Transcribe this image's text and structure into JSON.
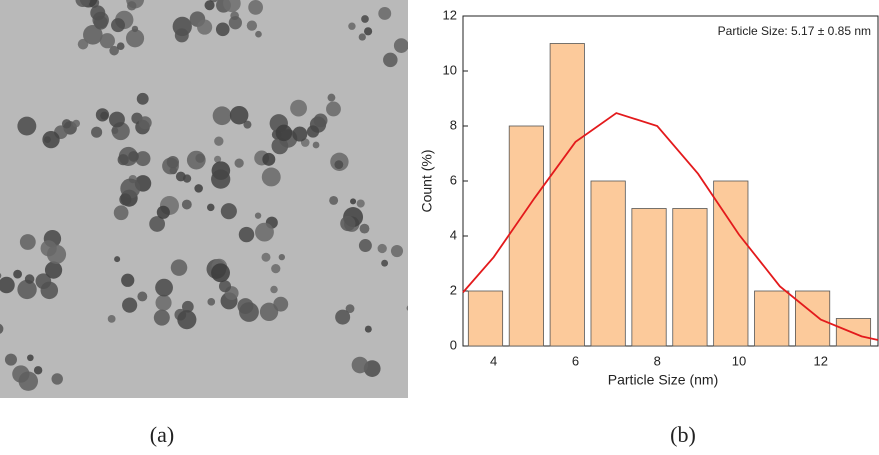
{
  "chart_data": [
    {
      "type": "image",
      "caption": "(a)"
    },
    {
      "type": "histogram",
      "caption": "(b)",
      "annotation": "Particle Size: 5.17 ± 0.85 nm",
      "x_label": "Particle Size (nm)",
      "y_label": "Count (%)",
      "bins": [
        3.3,
        4.3,
        5.3,
        6.3,
        7.3,
        8.3,
        9.3,
        10.3,
        11.3,
        12.3,
        13.3
      ],
      "values": [
        2,
        8,
        11,
        6,
        5,
        5,
        6,
        2,
        2,
        1
      ],
      "color": "#fcca9b",
      "fit": {
        "color": "#e31a1c",
        "x": [
          3.25,
          4,
          5,
          6,
          7,
          8,
          9,
          10,
          11,
          12,
          13,
          13.4
        ],
        "values": [
          1.95,
          3.23,
          5.38,
          7.42,
          8.47,
          8.0,
          6.26,
          4.05,
          2.17,
          0.96,
          0.35,
          0.22
        ]
      },
      "xlim": [
        3.25,
        13.4
      ],
      "xticks": [
        4,
        6,
        8,
        10,
        12
      ],
      "ylim": [
        0,
        12
      ],
      "yticks": [
        0,
        2,
        4,
        6,
        8,
        10,
        12
      ]
    }
  ]
}
